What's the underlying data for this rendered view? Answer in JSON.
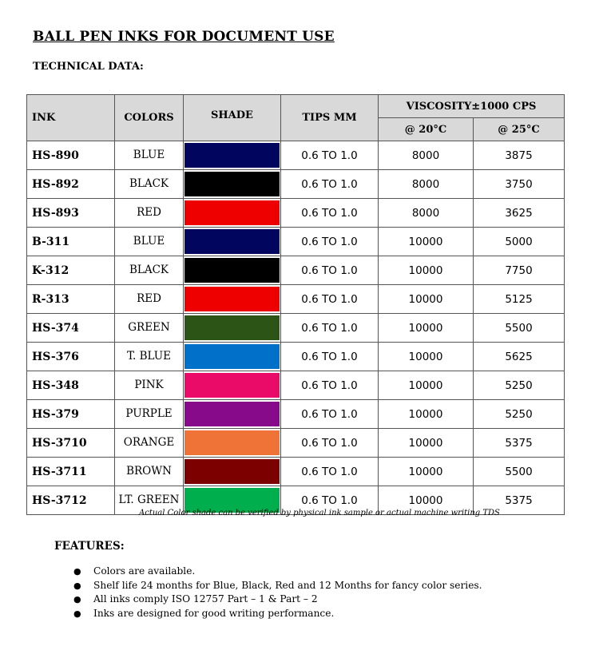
{
  "title": "BALL PEN INKS FOR DOCUMENT USE",
  "subtitle": "TECHNICAL DATA:",
  "table": {
    "headers": {
      "ink": "INK",
      "colors": "COLORS",
      "shade": "SHADE",
      "tips": "TIPS MM",
      "viscosity": "VISCOSITY±1000 CPS",
      "at20": "@ 20°C",
      "at25": "@ 25°C"
    },
    "rows": [
      {
        "code": "HS-890",
        "color": "BLUE",
        "shade": "#02055e",
        "tips": "0.6 TO 1.0",
        "v20": "8000",
        "v25": "3875"
      },
      {
        "code": "HS-892",
        "color": "BLACK",
        "shade": "#000000",
        "tips": "0.6 TO 1.0",
        "v20": "8000",
        "v25": "3750"
      },
      {
        "code": "HS-893",
        "color": "RED",
        "shade": "#ee0000",
        "tips": "0.6 TO 1.0",
        "v20": "8000",
        "v25": "3625"
      },
      {
        "code": "B-311",
        "color": "BLUE",
        "shade": "#02055e",
        "tips": "0.6 TO 1.0",
        "v20": "10000",
        "v25": "5000"
      },
      {
        "code": "K-312",
        "color": "BLACK",
        "shade": "#000000",
        "tips": "0.6 TO 1.0",
        "v20": "10000",
        "v25": "7750"
      },
      {
        "code": "R-313",
        "color": "RED",
        "shade": "#ee0000",
        "tips": "0.6 TO 1.0",
        "v20": "10000",
        "v25": "5125"
      },
      {
        "code": "HS-374",
        "color": "GREEN",
        "shade": "#2b5416",
        "tips": "0.6 TO 1.0",
        "v20": "10000",
        "v25": "5500"
      },
      {
        "code": "HS-376",
        "color": "T. BLUE",
        "shade": "#0070c8",
        "tips": "0.6 TO 1.0",
        "v20": "10000",
        "v25": "5625"
      },
      {
        "code": "HS-348",
        "color": "PINK",
        "shade": "#ea0a68",
        "tips": "0.6 TO 1.0",
        "v20": "10000",
        "v25": "5250"
      },
      {
        "code": "HS-379",
        "color": "PURPLE",
        "shade": "#870a8a",
        "tips": "0.6 TO 1.0",
        "v20": "10000",
        "v25": "5250"
      },
      {
        "code": "HS-3710",
        "color": "ORANGE",
        "shade": "#ef7236",
        "tips": "0.6 TO 1.0",
        "v20": "10000",
        "v25": "5375"
      },
      {
        "code": "HS-3711",
        "color": "BROWN",
        "shade": "#7c0000",
        "tips": "0.6 TO 1.0",
        "v20": "10000",
        "v25": "5500"
      },
      {
        "code": "HS-3712",
        "color": "LT. GREEN",
        "shade": "#00ae4e",
        "tips": "0.6 TO 1.0",
        "v20": "10000",
        "v25": "5375"
      }
    ]
  },
  "note": "Actual Color shade can be verified by physical ink sample or actual machine writing TDS",
  "features": {
    "heading": "FEATURES:",
    "items": [
      "Colors are available.",
      "Shelf life 24 months for Blue, Black, Red and 12 Months for fancy color series.",
      "All inks comply ISO 12757 Part – 1 & Part – 2",
      "Inks are designed for good writing performance."
    ]
  }
}
